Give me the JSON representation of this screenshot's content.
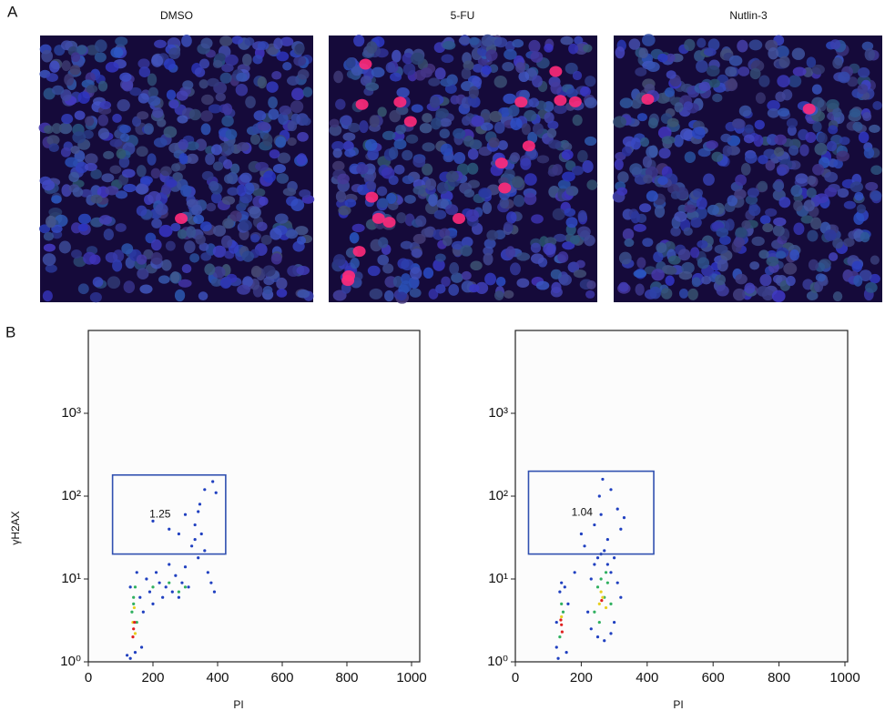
{
  "panel_labels": [
    "A",
    "B"
  ],
  "images": [
    {
      "title": "DMSO"
    },
    {
      "title": "5-FU"
    },
    {
      "title": "Nutlin-3"
    }
  ],
  "chart_data": [
    {
      "type": "scatter",
      "ylabel": "γH2AX",
      "xlabel": "PI",
      "log_y": true,
      "xlim": [
        0,
        1000
      ],
      "ylim": [
        1,
        10000
      ],
      "xticks": [
        0,
        200,
        400,
        600,
        800,
        1000
      ],
      "yticks": [
        {
          "value": 1,
          "label": "10⁰"
        },
        {
          "value": 10,
          "label": "10¹"
        },
        {
          "value": 100,
          "label": "10²"
        },
        {
          "value": 1000,
          "label": "10³"
        }
      ],
      "gate": {
        "x": [
          75,
          425
        ],
        "y": [
          20,
          180
        ],
        "color": "#3050b0",
        "value": 1.25
      },
      "series": [
        {
          "color": "#2040c0",
          "x": [
            120,
            130,
            150,
            160,
            170,
            180,
            190,
            200,
            210,
            220,
            230,
            240,
            250,
            260,
            270,
            280,
            290,
            300,
            310,
            320,
            330,
            340,
            350,
            360,
            370,
            380,
            390,
            250,
            300,
            330,
            345,
            360,
            200,
            280,
            130,
            145,
            165,
            385,
            395,
            340
          ],
          "y": [
            1.2,
            8,
            12,
            6,
            4,
            10,
            7,
            5,
            12,
            9,
            6,
            8,
            15,
            7,
            11,
            6,
            9,
            14,
            8,
            25,
            30,
            18,
            35,
            22,
            12,
            9,
            7,
            40,
            60,
            45,
            80,
            120,
            50,
            35,
            1.1,
            1.3,
            1.5,
            150,
            110,
            65
          ]
        },
        {
          "color": "#30b060",
          "x": [
            135,
            140,
            145,
            150,
            200,
            250,
            280,
            300,
            140
          ],
          "y": [
            4,
            6,
            8,
            3,
            8,
            9,
            7,
            8,
            5
          ]
        },
        {
          "color": "#e8d020",
          "x": [
            138,
            142,
            145
          ],
          "y": [
            3,
            4.5,
            2.2
          ]
        },
        {
          "color": "#e02020",
          "x": [
            140,
            143,
            138
          ],
          "y": [
            2.5,
            3,
            2
          ]
        }
      ]
    },
    {
      "type": "scatter",
      "xlabel": "PI",
      "log_y": true,
      "xlim": [
        0,
        1000
      ],
      "ylim": [
        1,
        10000
      ],
      "xticks": [
        0,
        200,
        400,
        600,
        800,
        1000
      ],
      "yticks": [
        {
          "value": 1,
          "label": "10⁰"
        },
        {
          "value": 10,
          "label": "10¹"
        },
        {
          "value": 100,
          "label": "10²"
        },
        {
          "value": 1000,
          "label": "10³"
        }
      ],
      "gate": {
        "x": [
          40,
          420
        ],
        "y": [
          20,
          200
        ],
        "color": "#3050b0",
        "value": 1.04
      },
      "series": [
        {
          "color": "#2040c0",
          "x": [
            130,
            135,
            150,
            155,
            125,
            160,
            220,
            230,
            240,
            250,
            260,
            270,
            280,
            290,
            300,
            310,
            320,
            230,
            250,
            270,
            290,
            300,
            280,
            240,
            210,
            260,
            320,
            330,
            200,
            180,
            140,
            125,
            265,
            290,
            310,
            255
          ],
          "y": [
            1.1,
            7,
            8,
            1.3,
            3,
            5,
            4,
            10,
            15,
            18,
            20,
            22,
            15,
            12,
            18,
            9,
            6,
            2.5,
            2,
            1.8,
            2.2,
            3,
            30,
            45,
            25,
            60,
            40,
            55,
            35,
            12,
            9,
            1.5,
            160,
            120,
            70,
            100
          ]
        },
        {
          "color": "#30b060",
          "x": [
            135,
            140,
            145,
            240,
            250,
            260,
            270,
            280,
            290,
            255,
            275
          ],
          "y": [
            2,
            5,
            4,
            4,
            8,
            10,
            6,
            9,
            5,
            3,
            12
          ]
        },
        {
          "color": "#e8d020",
          "x": [
            140,
            255,
            265,
            275,
            260
          ],
          "y": [
            3.5,
            5,
            6,
            4.5,
            7
          ]
        },
        {
          "color": "#e02020",
          "x": [
            140,
            142,
            138,
            262
          ],
          "y": [
            2.8,
            2.3,
            3.2,
            5.5
          ]
        }
      ]
    }
  ]
}
